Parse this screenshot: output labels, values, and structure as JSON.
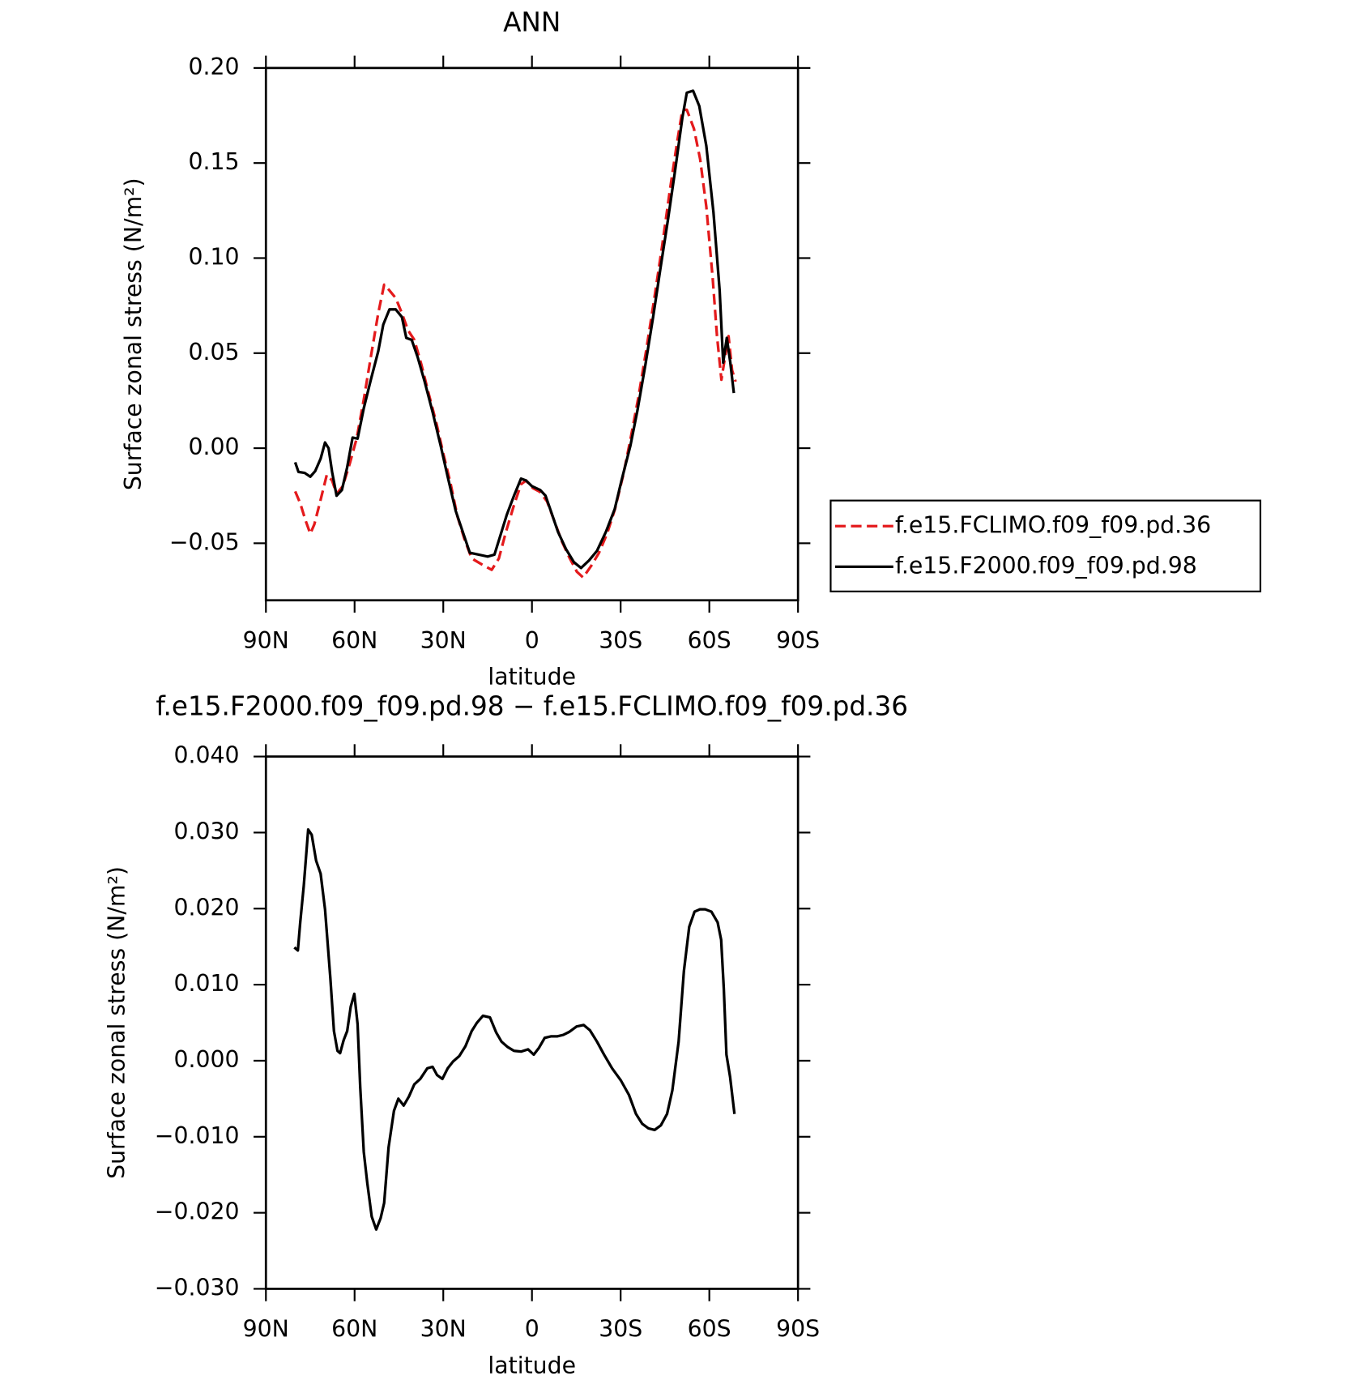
{
  "chart_data": [
    {
      "type": "line",
      "title": "ANN",
      "xlabel": "latitude",
      "ylabel": "Surface zonal stress (N/m²)",
      "xlim": [
        90,
        -90
      ],
      "xticks": [
        {
          "value": 90,
          "label": "90N"
        },
        {
          "value": 60,
          "label": "60N"
        },
        {
          "value": 30,
          "label": "30N"
        },
        0,
        {
          "value": -30,
          "label": "30S"
        },
        {
          "value": -60,
          "label": "60S"
        },
        {
          "value": -90,
          "label": "90S"
        }
      ],
      "ylim": [
        -0.08,
        0.2
      ],
      "yticks": [
        {
          "value": 0.2,
          "label": "0.20"
        },
        0.15,
        {
          "value": 0.1,
          "label": "0.10"
        },
        0.05,
        {
          "value": 0,
          "label": "0.00"
        },
        {
          "value": -0.05,
          "label": "−0.05"
        }
      ],
      "legend": true,
      "legend_position": "right",
      "series": [
        {
          "name": "f.e15.FCLIMO.f09_f09.pd.36",
          "color": "#e41a1c",
          "style": "dashed",
          "x": [
            80.1,
            78.4,
            76.6,
            75,
            73.6,
            71.8,
            69.4,
            67.6,
            66.1,
            64,
            61.6,
            59.3,
            56.9,
            54.5,
            52,
            50,
            48.2,
            46.1,
            44,
            41.9,
            39.8,
            37.4,
            35,
            32.3,
            30,
            27.6,
            25.2,
            22.8,
            20.4,
            17.1,
            13.6,
            11.2,
            8.8,
            6.1,
            3.7,
            2,
            -0.3,
            -2.7,
            -5.1,
            -7.5,
            -10.1,
            -12.8,
            -15.2,
            -17.3,
            -20,
            -22.7,
            -25.4,
            -28.1,
            -30.9,
            -33.3,
            -35.9,
            -38.6,
            -41.3,
            -44,
            -46.7,
            -49.1,
            -50.9,
            -52.4,
            -54.8,
            -56.9,
            -59,
            -61.1,
            -62.6,
            -64.1,
            -65.3,
            -66.5,
            -67.7,
            -68.9
          ],
          "values": [
            -0.0227,
            -0.029,
            -0.038,
            -0.045,
            -0.04,
            -0.029,
            -0.014,
            -0.017,
            -0.024,
            -0.02,
            -0.008,
            0.005,
            0.0256,
            0.048,
            0.071,
            0.086,
            0.083,
            0.079,
            0.071,
            0.062,
            0.057,
            0.044,
            0.029,
            0.013,
            -0.0028,
            -0.018,
            -0.036,
            -0.048,
            -0.058,
            -0.061,
            -0.064,
            -0.058,
            -0.044,
            -0.03,
            -0.019,
            -0.017,
            -0.021,
            -0.023,
            -0.028,
            -0.038,
            -0.049,
            -0.058,
            -0.065,
            -0.068,
            -0.062,
            -0.055,
            -0.045,
            -0.032,
            -0.014,
            0.0047,
            0.026,
            0.051,
            0.078,
            0.106,
            0.136,
            0.161,
            0.178,
            0.178,
            0.168,
            0.152,
            0.127,
            0.09,
            0.059,
            0.036,
            0.048,
            0.059,
            0.041,
            0.035
          ]
        },
        {
          "name": "f.e15.F2000.f09_f09.pd.98",
          "color": "#000000",
          "style": "solid",
          "x": [
            80.1,
            79,
            76.9,
            75,
            73.3,
            71.5,
            70,
            68.8,
            67.6,
            66.1,
            64.3,
            62.5,
            60.7,
            59,
            56.9,
            54.5,
            52,
            50.3,
            48.2,
            46.1,
            44,
            42.5,
            40.7,
            38.7,
            36.3,
            33.6,
            30.9,
            28.5,
            25.8,
            23.4,
            21,
            18,
            15,
            12.7,
            10.9,
            8.5,
            6.1,
            3.7,
            2,
            0,
            -2.8,
            -4.6,
            -6.4,
            -8.8,
            -11.5,
            -14.2,
            -16.6,
            -19.3,
            -22,
            -25,
            -28,
            -30.3,
            -33.3,
            -35.7,
            -38.4,
            -41,
            -43.4,
            -46.1,
            -48.5,
            -50.9,
            -52.4,
            -54.5,
            -56.6,
            -59,
            -61.4,
            -63.5,
            -64.7,
            -65.9,
            -67.1,
            -68.3
          ],
          "values": [
            -0.0074,
            -0.0125,
            -0.013,
            -0.015,
            -0.012,
            -0.0055,
            0.003,
            0.0,
            -0.0125,
            -0.025,
            -0.022,
            -0.01,
            0.0056,
            0.005,
            0.021,
            0.036,
            0.051,
            0.065,
            0.073,
            0.073,
            0.069,
            0.058,
            0.057,
            0.048,
            0.035,
            0.019,
            0.0014,
            -0.015,
            -0.033,
            -0.044,
            -0.055,
            -0.056,
            -0.057,
            -0.056,
            -0.047,
            -0.035,
            -0.025,
            -0.016,
            -0.017,
            -0.02,
            -0.022,
            -0.025,
            -0.033,
            -0.044,
            -0.053,
            -0.06,
            -0.063,
            -0.059,
            -0.054,
            -0.044,
            -0.032,
            -0.017,
            0.0014,
            0.02,
            0.044,
            0.069,
            0.094,
            0.121,
            0.147,
            0.174,
            0.187,
            0.188,
            0.18,
            0.159,
            0.124,
            0.083,
            0.045,
            0.058,
            0.045,
            0.029
          ]
        }
      ]
    },
    {
      "type": "line",
      "title": "f.e15.F2000.f09_f09.pd.98 − f.e15.FCLIMO.f09_f09.pd.36",
      "xlabel": "latitude",
      "ylabel": "Surface zonal stress (N/m²)",
      "xlim": [
        90,
        -90
      ],
      "xticks": [
        {
          "value": 90,
          "label": "90N"
        },
        {
          "value": 60,
          "label": "60N"
        },
        {
          "value": 30,
          "label": "30N"
        },
        0,
        {
          "value": -30,
          "label": "30S"
        },
        {
          "value": -60,
          "label": "60S"
        },
        {
          "value": -90,
          "label": "90S"
        }
      ],
      "ylim": [
        -0.03,
        0.04
      ],
      "yticks": [
        {
          "value": 0.04,
          "label": "0.040"
        },
        {
          "value": 0.03,
          "label": "0.030"
        },
        {
          "value": 0.02,
          "label": "0.020"
        },
        {
          "value": 0.01,
          "label": "0.010"
        },
        {
          "value": 0,
          "label": "0.000"
        },
        {
          "value": -0.01,
          "label": "−0.010"
        },
        {
          "value": -0.02,
          "label": "−0.020"
        },
        {
          "value": -0.03,
          "label": "−0.030"
        }
      ],
      "legend": false,
      "series": [
        {
          "color": "#000000",
          "style": "solid",
          "x": [
            80.4,
            79.2,
            78.4,
            77.2,
            75.7,
            74.5,
            73,
            71.5,
            70,
            68.2,
            67,
            65.8,
            64.9,
            63.7,
            62.5,
            61.3,
            60.1,
            59,
            58.1,
            56.9,
            55.7,
            54.2,
            52.7,
            51.2,
            50,
            48.5,
            46.7,
            45.2,
            43.4,
            41.6,
            39.8,
            37.8,
            35.4,
            33.6,
            32.1,
            30.3,
            28.5,
            26.7,
            24.6,
            22.5,
            20.4,
            18.6,
            16.6,
            14.2,
            12.1,
            10.3,
            8.2,
            6.1,
            3.7,
            1.3,
            -0.6,
            -2.4,
            -4.3,
            -6.4,
            -8.5,
            -10.6,
            -12.7,
            -15.1,
            -17.5,
            -19.6,
            -22,
            -24.4,
            -27.1,
            -30.1,
            -32.8,
            -35.2,
            -37.3,
            -39.4,
            -41.5,
            -43.6,
            -45.7,
            -47.5,
            -49.6,
            -51.4,
            -53.2,
            -55,
            -56.8,
            -58.6,
            -60.7,
            -62.8,
            -64,
            -64.9,
            -65.8,
            -67,
            -68.5
          ],
          "values": [
            0.0149,
            0.0145,
            0.0182,
            0.023,
            0.0304,
            0.0297,
            0.0263,
            0.0246,
            0.0199,
            0.0109,
            0.0039,
            0.0013,
            0.001,
            0.0027,
            0.0039,
            0.0071,
            0.0088,
            0.0048,
            -0.0035,
            -0.012,
            -0.0161,
            -0.0205,
            -0.0222,
            -0.0207,
            -0.0187,
            -0.0114,
            -0.0066,
            -0.005,
            -0.0059,
            -0.0047,
            -0.0031,
            -0.0024,
            -0.001,
            -0.0008,
            -0.0019,
            -0.0024,
            -0.001,
            -0.0001,
            0.0006,
            0.0019,
            0.0039,
            0.005,
            0.0059,
            0.0057,
            0.0037,
            0.0025,
            0.0018,
            0.0013,
            0.0012,
            0.0015,
            0.0008,
            0.0017,
            0.003,
            0.0032,
            0.0032,
            0.0034,
            0.0038,
            0.0045,
            0.0047,
            0.004,
            0.0025,
            0.0008,
            -0.001,
            -0.0026,
            -0.0045,
            -0.007,
            -0.0083,
            -0.0089,
            -0.0091,
            -0.0085,
            -0.007,
            -0.0039,
            0.0025,
            0.0118,
            0.0176,
            0.0196,
            0.0199,
            0.0199,
            0.0196,
            0.0182,
            0.0159,
            0.0095,
            0.0008,
            -0.0021,
            -0.007
          ]
        }
      ]
    }
  ]
}
